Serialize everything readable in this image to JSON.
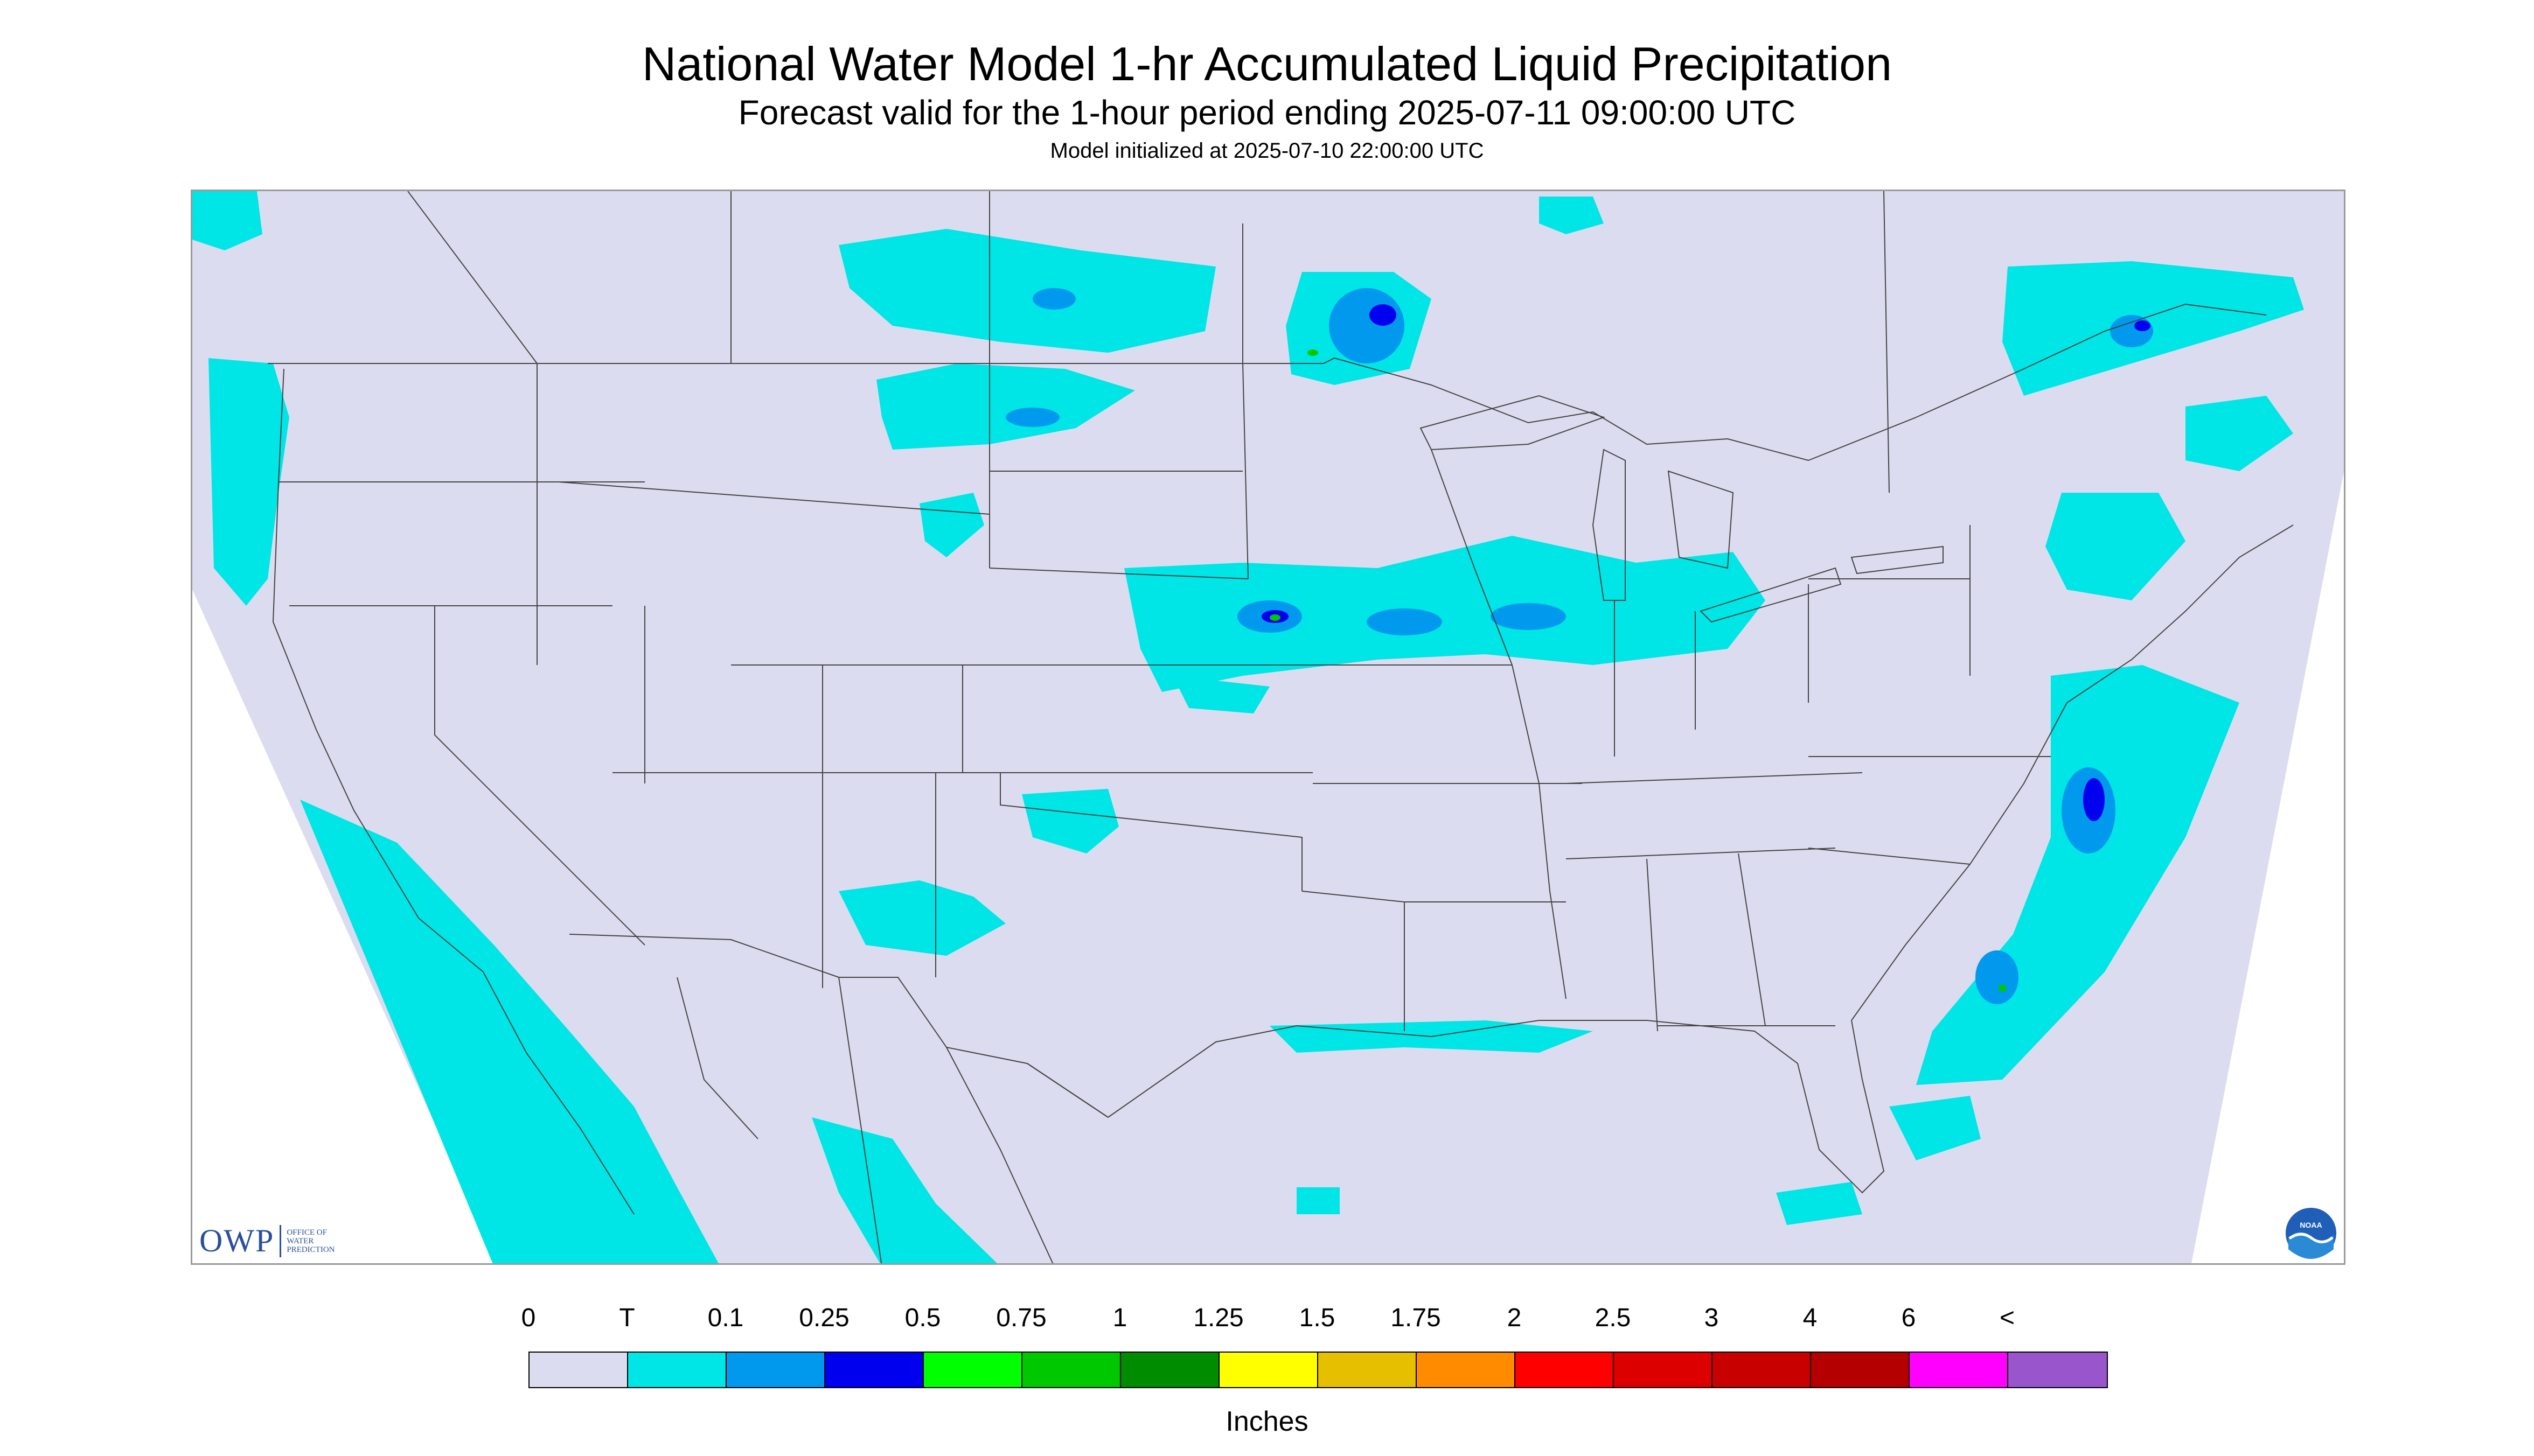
{
  "title": "National Water Model 1-hr Accumulated Liquid Precipitation",
  "subtitle": "Forecast valid for the 1-hour period ending 2025-07-11 09:00:00 UTC",
  "init_line": "Model initialized at 2025-07-10 22:00:00 UTC",
  "logos": {
    "owp": {
      "abbr": "OWP",
      "text_lines": [
        "OFFICE OF",
        "WATER",
        "PREDICTION"
      ]
    },
    "noaa": {
      "icon": "noaa-logo-icon",
      "text": "NOAA"
    }
  },
  "colors": {
    "background": "#dcdcf0",
    "outside_domain": "#ffffff",
    "boundary_lines": "#444444",
    "frame": "#9a9a9a"
  },
  "legend": {
    "labels": [
      "0",
      "T",
      "0.1",
      "0.25",
      "0.5",
      "0.75",
      "1",
      "1.25",
      "1.5",
      "1.75",
      "2",
      "2.5",
      "3",
      "4",
      "6",
      "<"
    ],
    "colors": [
      "#dcdcf0",
      "#00e5e5",
      "#0099ee",
      "#0000ee",
      "#00ff00",
      "#00c800",
      "#008c00",
      "#ffff00",
      "#e6c000",
      "#ff8c00",
      "#ff0000",
      "#dc0000",
      "#c80000",
      "#b40000",
      "#ff00ff",
      "#9955cc"
    ],
    "units": "Inches"
  }
}
